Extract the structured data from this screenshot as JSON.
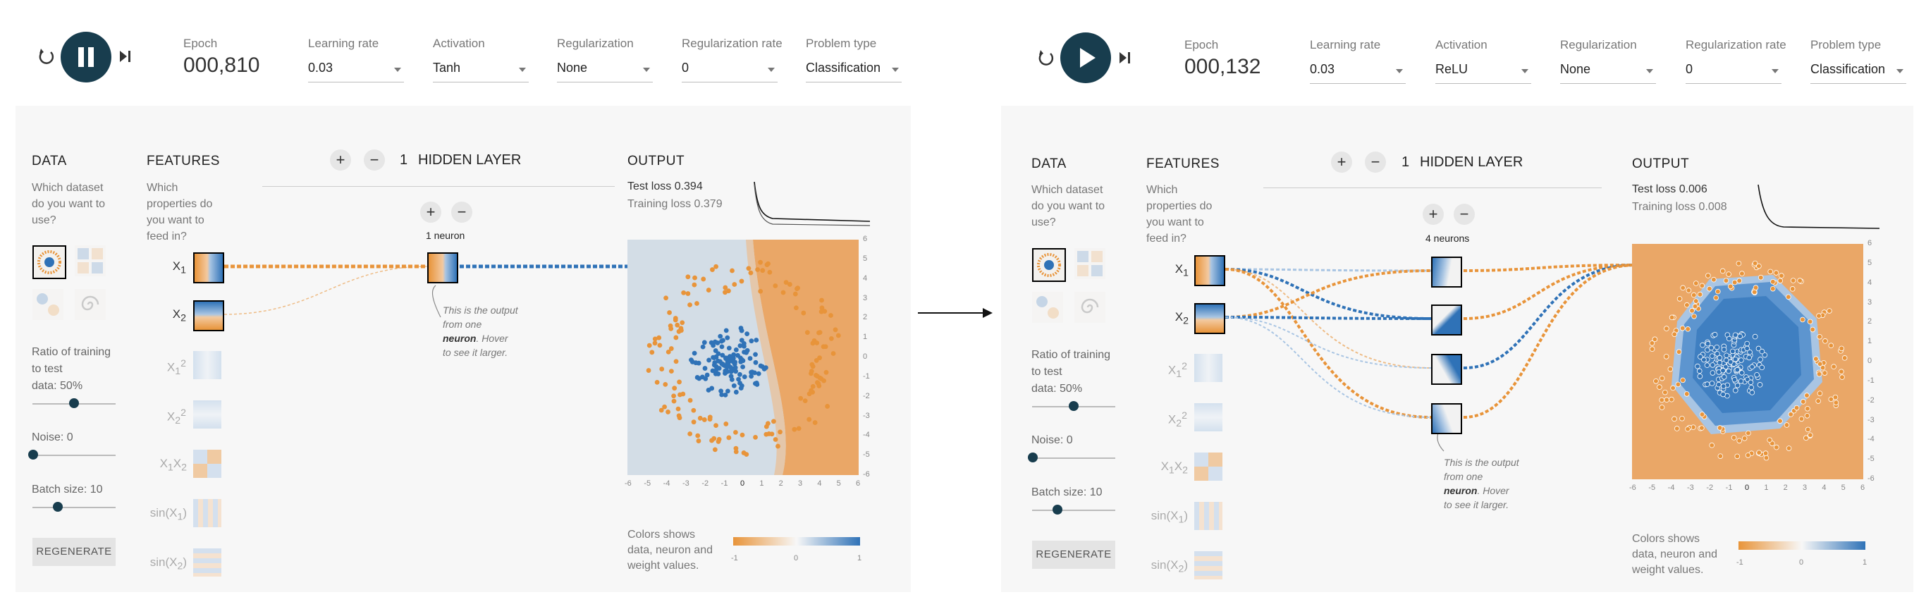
{
  "labels": {
    "epoch": "Epoch",
    "learning_rate": "Learning rate",
    "activation": "Activation",
    "regularization": "Regularization",
    "regularization_rate": "Regularization rate",
    "problem_type": "Problem type",
    "data_title": "DATA",
    "data_desc": [
      "Which dataset",
      "do you want to",
      "use?"
    ],
    "features_title": "FEATURES",
    "features_desc": [
      "Which",
      "properties do",
      "you want to",
      "feed in?"
    ],
    "hidden_layer": "HIDDEN LAYER",
    "output_title": "OUTPUT",
    "ratio_label": [
      "Ratio of training",
      "to test",
      "data:  50%"
    ],
    "noise_label": "Noise:  0",
    "batch_label": "Batch size:  10",
    "regenerate": "REGENERATE",
    "note_line1": "This is the output",
    "note_line2": "from one",
    "note_bold": "neuron",
    "note_line3": ". Hover",
    "note_line4": "to see it larger.",
    "legend_desc": [
      "Colors shows",
      "data, neuron and",
      "weight values."
    ],
    "legend_ticks": [
      "-1",
      "0",
      "1"
    ],
    "feature_names": [
      "X1",
      "X2",
      "X1²",
      "X2²",
      "X1X2",
      "sin(X1)",
      "sin(X2)"
    ],
    "axis_x": [
      "-6",
      "-5",
      "-4",
      "-3",
      "-2",
      "-1",
      "0",
      "1",
      "2",
      "3",
      "4",
      "5",
      "6"
    ],
    "axis_y": [
      "6",
      "5",
      "4",
      "3",
      "2",
      "1",
      "0",
      "-1",
      "-2",
      "-3",
      "-4",
      "-5",
      "-6"
    ]
  },
  "left": {
    "epoch": "000,810",
    "learning_rate": "0.03",
    "activation": "Tanh",
    "regularization": "None",
    "regularization_rate": "0",
    "problem_type": "Classification",
    "hidden_layers": "1",
    "neurons": "1 neuron",
    "test_loss": "Test loss 0.394",
    "training_loss": "Training loss 0.379",
    "play_state": "paused"
  },
  "right": {
    "epoch": "000,132",
    "learning_rate": "0.03",
    "activation": "ReLU",
    "regularization": "None",
    "regularization_rate": "0",
    "problem_type": "Classification",
    "hidden_layers": "1",
    "neurons": "4 neurons",
    "test_loss": "Test loss 0.006",
    "training_loss": "Training loss 0.008",
    "play_state": "stopped"
  },
  "sliders": {
    "ratio": 0.5,
    "noise": 0.0,
    "batch": 0.3
  },
  "colors": {
    "orange": "#e8943a",
    "blue": "#2f72b7",
    "dark": "#183d4e",
    "panel": "#f7f7f7"
  }
}
